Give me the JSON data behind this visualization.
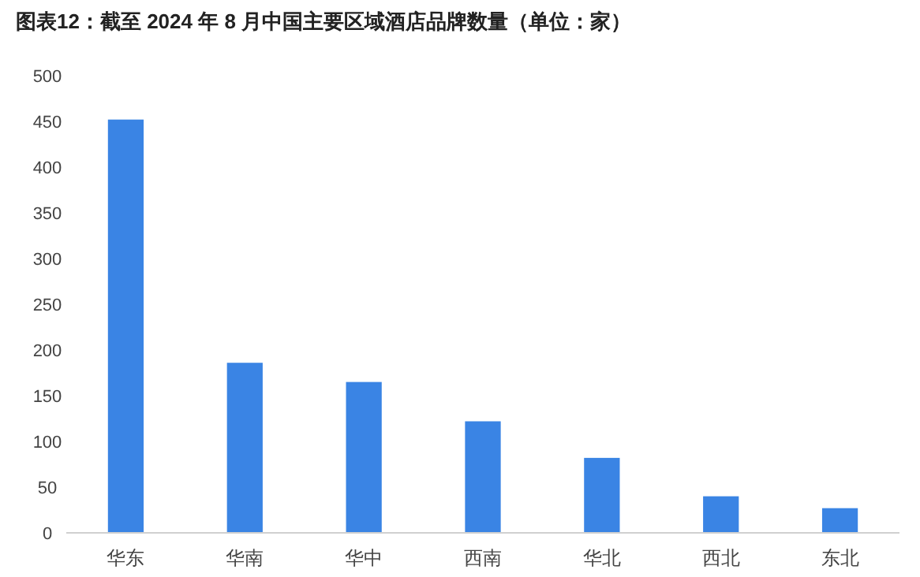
{
  "chart_data": {
    "type": "bar",
    "title": "图表12：截至 2024 年 8 月中国主要区域酒店品牌数量（单位：家）",
    "categories": [
      "华东",
      "华南",
      "华中",
      "西南",
      "华北",
      "西北",
      "东北"
    ],
    "values": [
      452,
      186,
      165,
      122,
      82,
      40,
      27
    ],
    "color": "#3a84e4",
    "ylim": [
      0,
      500
    ],
    "yticks": [
      0,
      50,
      100,
      150,
      200,
      250,
      300,
      350,
      400,
      450,
      500
    ],
    "grid": false
  }
}
